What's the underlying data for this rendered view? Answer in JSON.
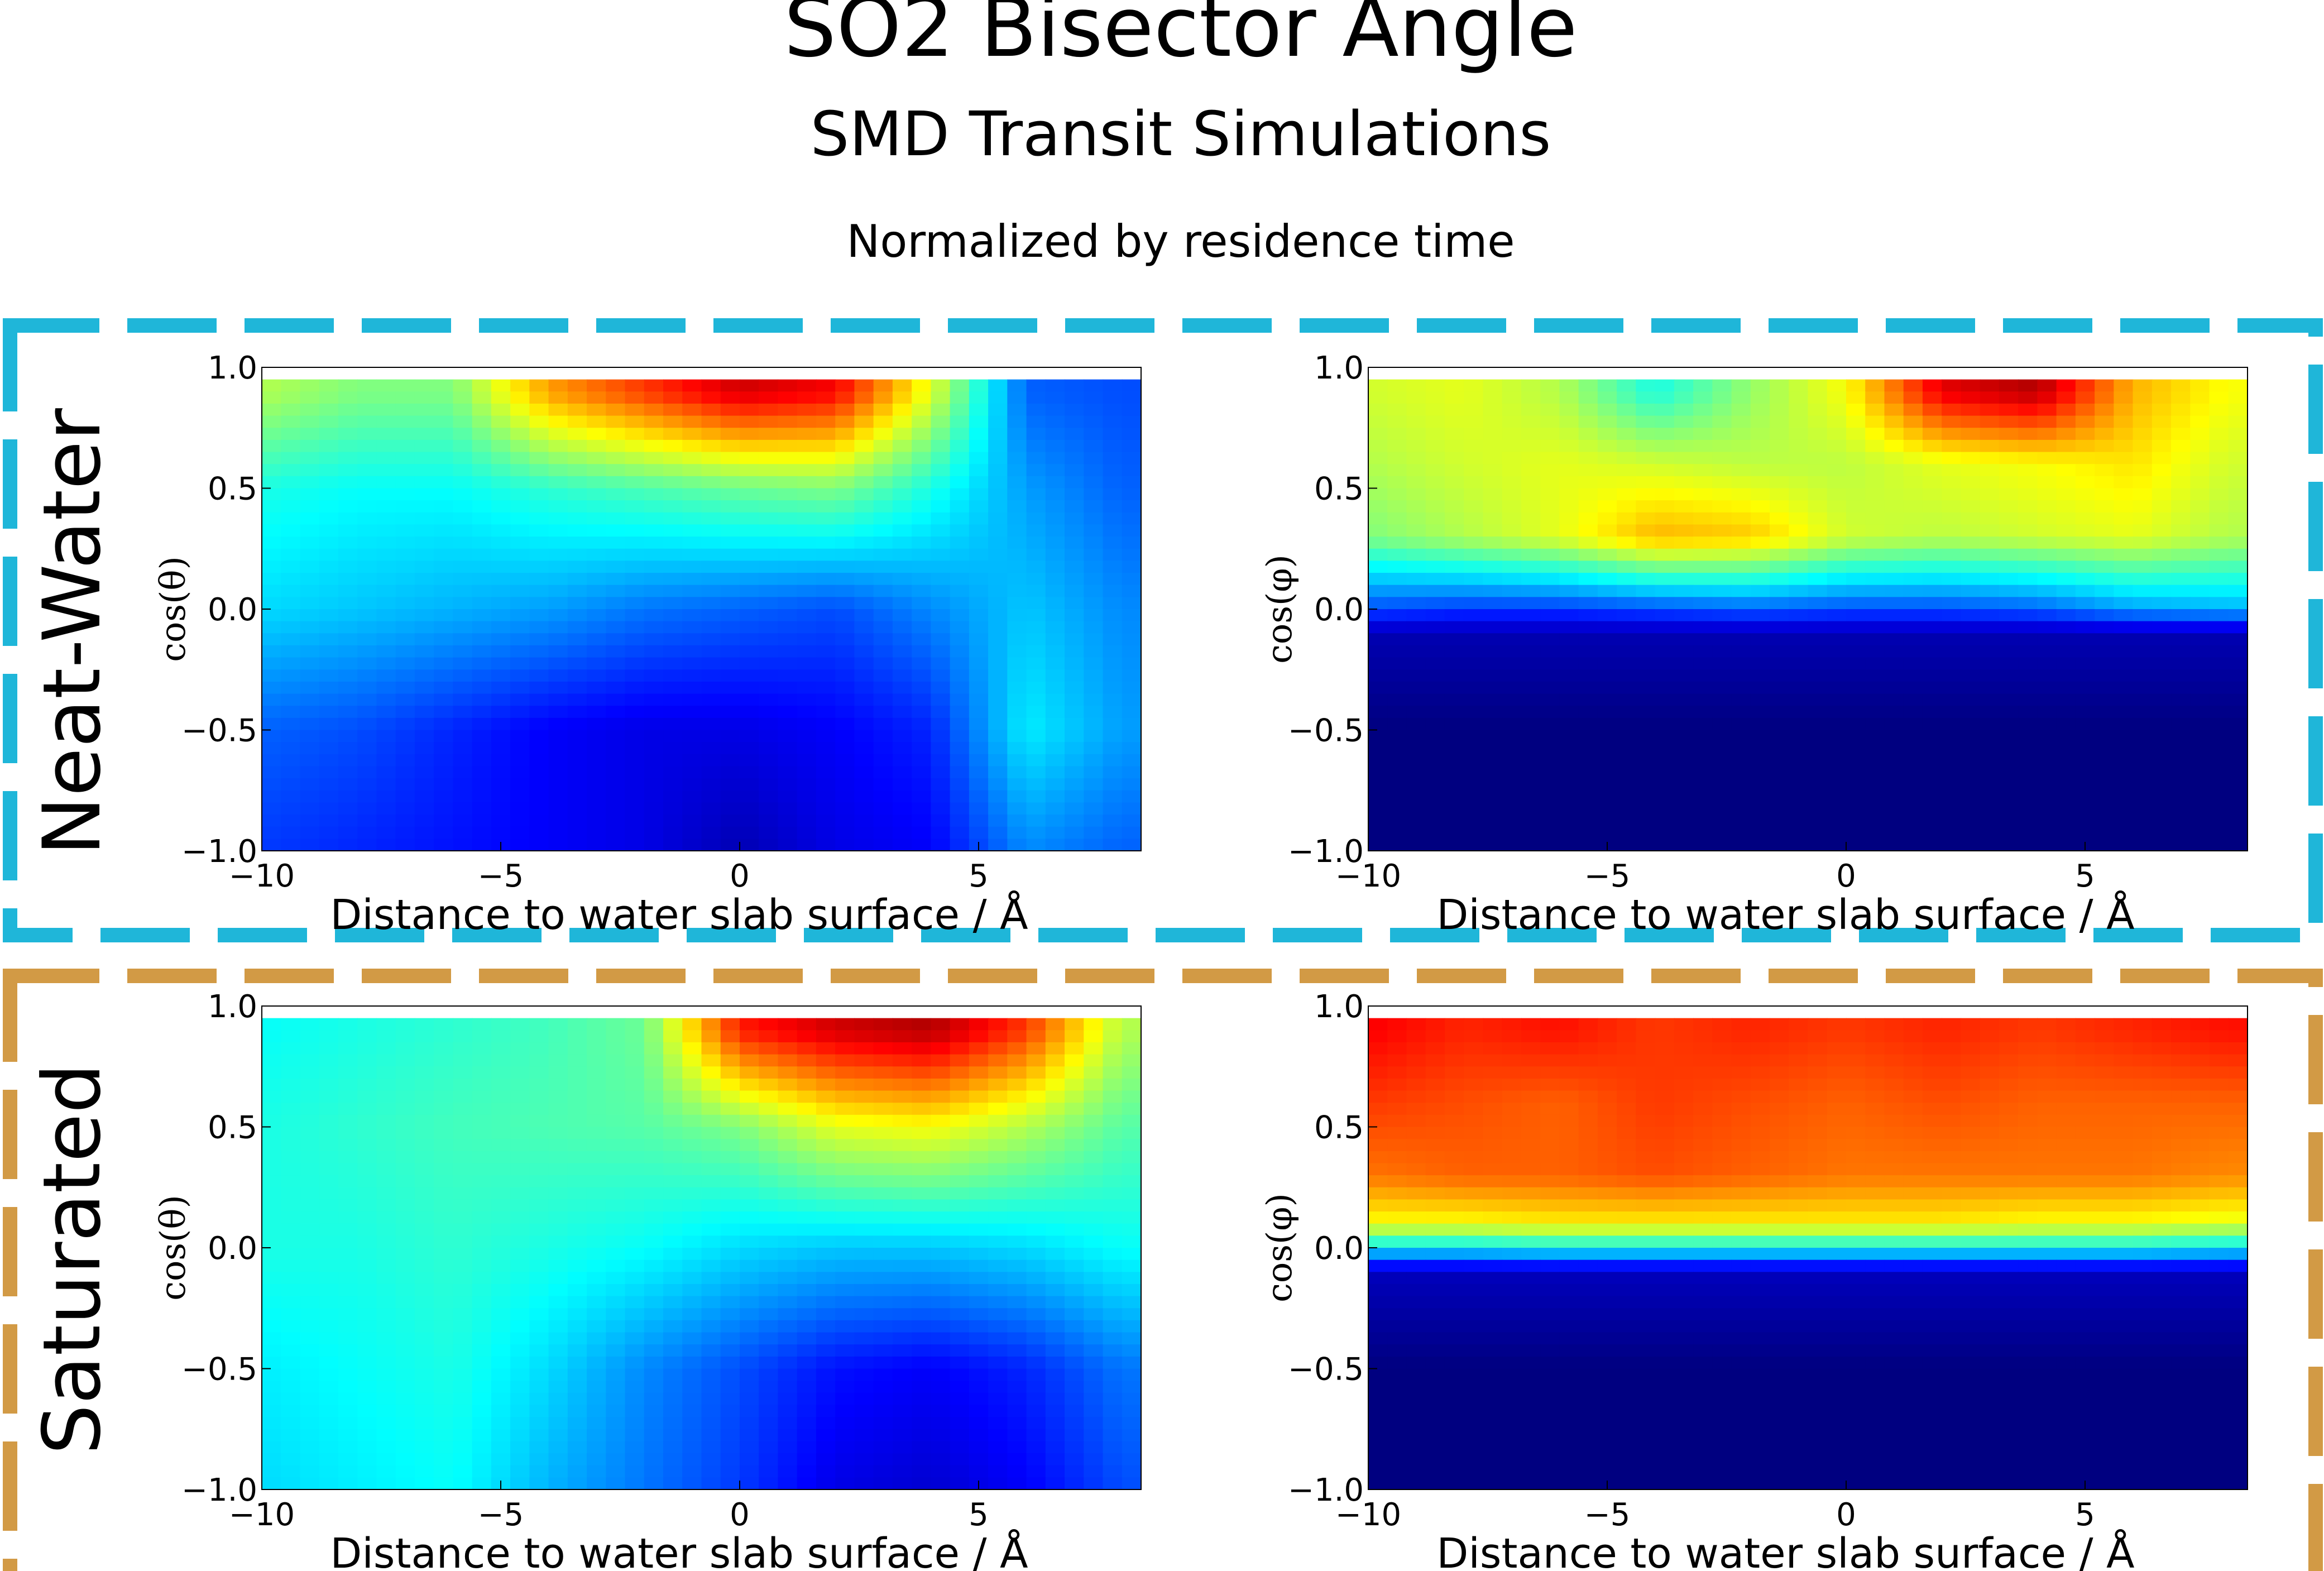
{
  "figure": {
    "title": "SO2 Bisector Angle",
    "subtitle": "SMD Transit Simulations",
    "note": "Normalized by residence time"
  },
  "colors": {
    "neat_water_frame": "#1fb6d9",
    "saturated_frame": "#d29a45",
    "colormap": "jet"
  },
  "groups": [
    {
      "label": "Neat-Water",
      "frame_color": "#1fb6d9"
    },
    {
      "label": "Saturated",
      "frame_color": "#d29a45"
    }
  ],
  "chart_data": [
    {
      "type": "heatmap",
      "group": "Neat-Water",
      "xlabel": "Distance to water slab surface / Å",
      "ylabel": "cos(θ)",
      "xlim": [
        -10,
        8.4
      ],
      "ylim": [
        -1.0,
        1.0
      ],
      "data_ylim": [
        -1.0,
        0.95
      ],
      "xticks": [
        "−10",
        "−5",
        "0",
        "5"
      ],
      "yticks": [
        "−1.0",
        "−0.5",
        "0.0",
        "0.5",
        "1.0"
      ],
      "colormap": "jet",
      "x": [
        -10,
        -8,
        -6,
        -4,
        -2,
        0,
        2,
        4,
        6,
        8
      ],
      "y": [
        -1.0,
        -0.5,
        0.0,
        0.5,
        0.9
      ],
      "z": [
        [
          0.18,
          0.16,
          0.14,
          0.12,
          0.1,
          0.05,
          0.1,
          0.12,
          0.26,
          0.22
        ],
        [
          0.22,
          0.2,
          0.16,
          0.12,
          0.1,
          0.1,
          0.12,
          0.16,
          0.36,
          0.28
        ],
        [
          0.34,
          0.32,
          0.3,
          0.28,
          0.24,
          0.22,
          0.2,
          0.26,
          0.32,
          0.26
        ],
        [
          0.4,
          0.38,
          0.38,
          0.42,
          0.45,
          0.48,
          0.5,
          0.4,
          0.28,
          0.22
        ],
        [
          0.55,
          0.5,
          0.5,
          0.72,
          0.82,
          0.92,
          0.88,
          0.6,
          0.22,
          0.2
        ]
      ]
    },
    {
      "type": "heatmap",
      "group": "Neat-Water",
      "xlabel": "Distance to water slab surface / Å",
      "ylabel": "cos(φ)",
      "xlim": [
        -10,
        8.4
      ],
      "ylim": [
        -1.0,
        1.0
      ],
      "data_ylim": [
        -1.0,
        0.95
      ],
      "xticks": [
        "−10",
        "−5",
        "0",
        "5"
      ],
      "yticks": [
        "−1.0",
        "−0.5",
        "0.0",
        "0.5",
        "1.0"
      ],
      "colormap": "jet",
      "x": [
        -10,
        -8,
        -6,
        -4,
        -2,
        0,
        2,
        4,
        6,
        8
      ],
      "y": [
        -1.0,
        -0.5,
        -0.1,
        0.0,
        0.3,
        0.6,
        0.9
      ],
      "z": [
        [
          0.0,
          0.0,
          0.0,
          0.0,
          0.0,
          0.0,
          0.0,
          0.0,
          0.0,
          0.0
        ],
        [
          0.0,
          0.0,
          0.0,
          0.0,
          0.0,
          0.0,
          0.0,
          0.0,
          0.0,
          0.0
        ],
        [
          0.05,
          0.05,
          0.05,
          0.05,
          0.05,
          0.05,
          0.05,
          0.05,
          0.05,
          0.05
        ],
        [
          0.2,
          0.18,
          0.18,
          0.2,
          0.22,
          0.2,
          0.2,
          0.22,
          0.28,
          0.3
        ],
        [
          0.5,
          0.55,
          0.6,
          0.7,
          0.68,
          0.58,
          0.56,
          0.58,
          0.6,
          0.55
        ],
        [
          0.55,
          0.58,
          0.6,
          0.58,
          0.56,
          0.56,
          0.6,
          0.62,
          0.65,
          0.58
        ],
        [
          0.58,
          0.6,
          0.55,
          0.4,
          0.52,
          0.62,
          0.9,
          0.95,
          0.7,
          0.62
        ]
      ]
    },
    {
      "type": "heatmap",
      "group": "Saturated",
      "xlabel": "Distance to water slab surface / Å",
      "ylabel": "cos(θ)",
      "xlim": [
        -10,
        8.4
      ],
      "ylim": [
        -1.0,
        1.0
      ],
      "data_ylim": [
        -1.0,
        0.95
      ],
      "xticks": [
        "−10",
        "−5",
        "0",
        "5"
      ],
      "yticks": [
        "−1.0",
        "−0.5",
        "0.0",
        "0.5",
        "1.0"
      ],
      "colormap": "jet",
      "x": [
        -10,
        -8,
        -6,
        -4,
        -2,
        0,
        2,
        4,
        6,
        8
      ],
      "y": [
        -1.0,
        -0.5,
        0.0,
        0.5,
        0.9
      ],
      "z": [
        [
          0.34,
          0.36,
          0.38,
          0.3,
          0.24,
          0.18,
          0.1,
          0.08,
          0.12,
          0.2
        ],
        [
          0.36,
          0.38,
          0.4,
          0.34,
          0.26,
          0.2,
          0.14,
          0.12,
          0.16,
          0.24
        ],
        [
          0.4,
          0.4,
          0.42,
          0.4,
          0.38,
          0.34,
          0.32,
          0.32,
          0.34,
          0.38
        ],
        [
          0.4,
          0.42,
          0.44,
          0.45,
          0.46,
          0.5,
          0.6,
          0.62,
          0.55,
          0.46
        ],
        [
          0.38,
          0.4,
          0.42,
          0.44,
          0.48,
          0.85,
          0.92,
          0.95,
          0.82,
          0.55
        ]
      ]
    },
    {
      "type": "heatmap",
      "group": "Saturated",
      "xlabel": "Distance to water slab surface / Å",
      "ylabel": "cos(φ)",
      "xlim": [
        -10,
        8.4
      ],
      "ylim": [
        -1.0,
        1.0
      ],
      "data_ylim": [
        -1.0,
        0.95
      ],
      "xticks": [
        "−10",
        "−5",
        "0",
        "5"
      ],
      "yticks": [
        "−1.0",
        "−0.5",
        "0.0",
        "0.5",
        "1.0"
      ],
      "colormap": "jet",
      "x": [
        -10,
        -8,
        -6,
        -4,
        -2,
        0,
        2,
        4,
        6,
        8
      ],
      "y": [
        -1.0,
        -0.5,
        -0.1,
        0.0,
        0.1,
        0.3,
        0.6,
        0.9
      ],
      "z": [
        [
          0.0,
          0.0,
          0.0,
          0.0,
          0.0,
          0.0,
          0.0,
          0.0,
          0.0,
          0.0
        ],
        [
          0.0,
          0.0,
          0.0,
          0.0,
          0.0,
          0.0,
          0.0,
          0.0,
          0.0,
          0.0
        ],
        [
          0.06,
          0.06,
          0.06,
          0.06,
          0.06,
          0.06,
          0.06,
          0.06,
          0.06,
          0.06
        ],
        [
          0.36,
          0.36,
          0.38,
          0.38,
          0.38,
          0.38,
          0.38,
          0.38,
          0.38,
          0.36
        ],
        [
          0.62,
          0.62,
          0.64,
          0.64,
          0.64,
          0.64,
          0.64,
          0.62,
          0.62,
          0.6
        ],
        [
          0.76,
          0.78,
          0.78,
          0.8,
          0.78,
          0.76,
          0.76,
          0.76,
          0.76,
          0.74
        ],
        [
          0.82,
          0.8,
          0.78,
          0.82,
          0.8,
          0.78,
          0.8,
          0.78,
          0.78,
          0.78
        ],
        [
          0.88,
          0.84,
          0.86,
          0.82,
          0.84,
          0.82,
          0.84,
          0.82,
          0.84,
          0.86
        ]
      ]
    }
  ]
}
